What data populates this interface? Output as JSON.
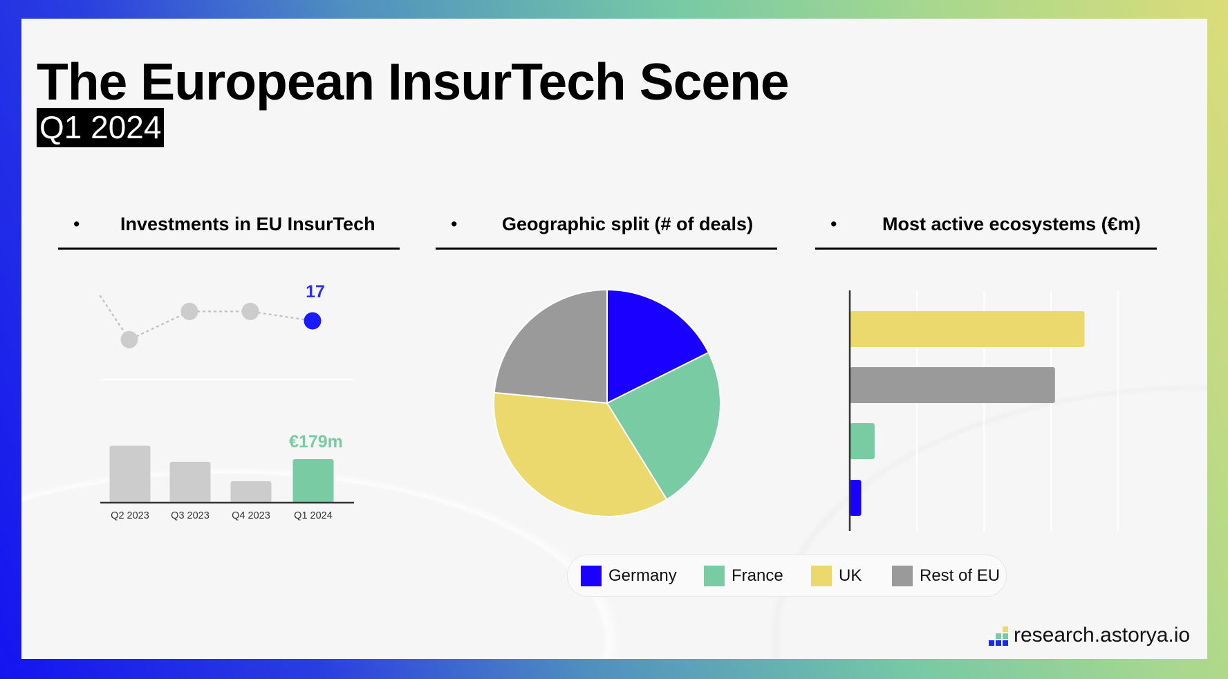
{
  "header": {
    "title": "The European InsurTech Scene",
    "subtitle": "Q1 2024"
  },
  "colors": {
    "germany": "#1a00ff",
    "france": "#79cba3",
    "uk": "#ecd96e",
    "rest_of_eu": "#9a9a9a",
    "inactive": "#cccccc",
    "highlight_blue": "#1a1aff"
  },
  "sections": [
    {
      "bullet": "•",
      "label": "Investments in EU InsurTech"
    },
    {
      "bullet": "•",
      "label": "Geographic split (# of deals)"
    },
    {
      "bullet": "•",
      "label": "Most active ecosystems (€m)"
    }
  ],
  "chart_data": [
    {
      "type": "line",
      "categories": [
        "Q2 2023",
        "Q3 2023",
        "Q4 2023",
        "Q1 2024"
      ],
      "values": [
        13,
        19,
        19,
        17
      ],
      "data_label": "17",
      "highlight": "Q1 2024",
      "line_style": "dotted"
    },
    {
      "type": "bar",
      "categories": [
        "Q2 2023",
        "Q3 2023",
        "Q4 2023",
        "Q1 2024"
      ],
      "values": [
        234,
        168,
        88,
        179
      ],
      "unit": "€m",
      "data_label": "€179m",
      "highlight": "Q1 2024"
    },
    {
      "type": "pie",
      "title": "Geographic split (# of deals)",
      "labels": [
        "Germany",
        "France",
        "UK",
        "Rest of EU"
      ],
      "values": [
        3,
        4,
        6,
        4
      ],
      "legend": "bottom"
    },
    {
      "type": "bar",
      "orientation": "horizontal",
      "title": "Most active ecosystems (€m)",
      "categories": [
        "UK",
        "Rest of EU",
        "France",
        "Germany"
      ],
      "values": [
        3.5,
        3.06,
        0.37,
        0.17
      ],
      "xlim": [
        0,
        4
      ],
      "grid": true,
      "tick_labels_visible": false
    }
  ],
  "logo": {
    "text": "research.astorya.io"
  }
}
